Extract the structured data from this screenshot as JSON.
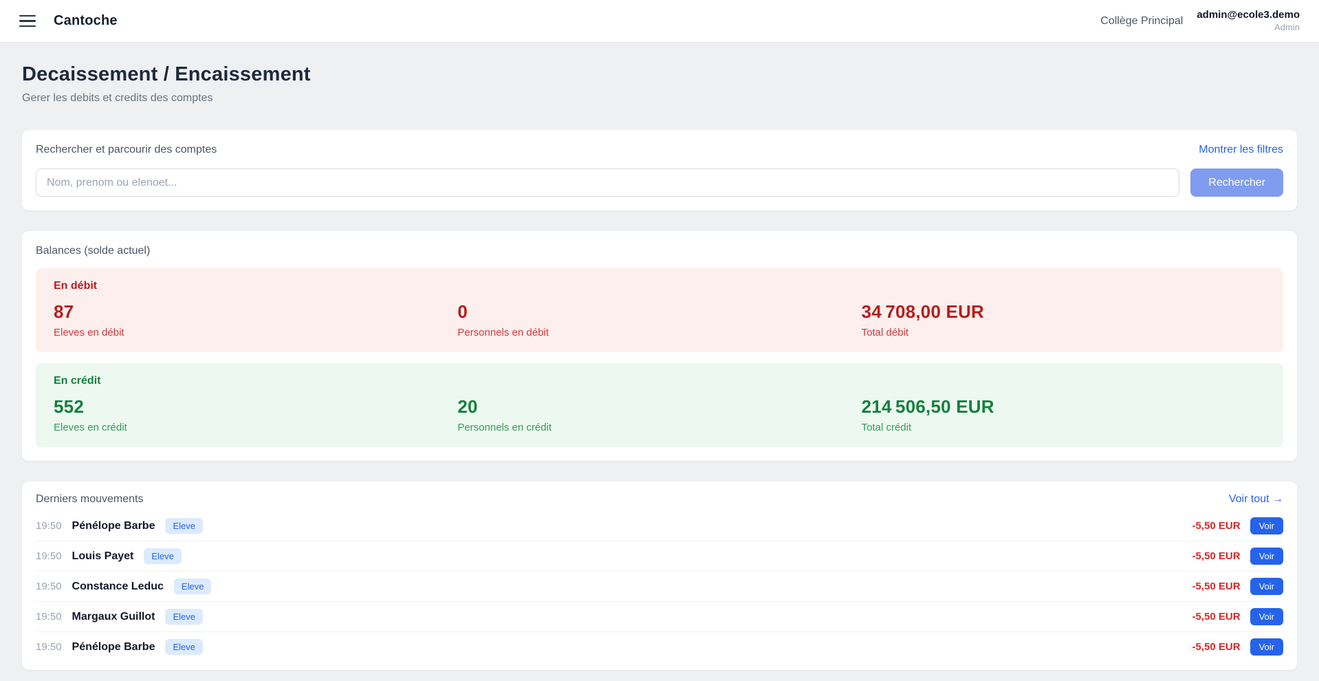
{
  "header": {
    "app_title": "Cantoche",
    "school": "Collège Principal",
    "user_email": "admin@ecole3.demo",
    "user_role": "Admin"
  },
  "page": {
    "title": "Decaissement / Encaissement",
    "subtitle": "Gerer les debits et credits des comptes"
  },
  "search": {
    "label": "Rechercher et parcourir des comptes",
    "filters_link": "Montrer les filtres",
    "placeholder": "Nom, prenom ou elenoet...",
    "button": "Rechercher"
  },
  "balances": {
    "title": "Balances (solde actuel)",
    "debit": {
      "heading": "En débit",
      "stats": [
        {
          "value": "87",
          "label": "Eleves en débit"
        },
        {
          "value": "0",
          "label": "Personnels en débit"
        },
        {
          "value": "34 708,00 EUR",
          "label": "Total débit"
        }
      ]
    },
    "credit": {
      "heading": "En crédit",
      "stats": [
        {
          "value": "552",
          "label": "Eleves en crédit"
        },
        {
          "value": "20",
          "label": "Personnels en crédit"
        },
        {
          "value": "214 506,50 EUR",
          "label": "Total crédit"
        }
      ]
    }
  },
  "movements": {
    "title": "Derniers mouvements",
    "see_all": "Voir tout →",
    "view_button": "Voir",
    "rows": [
      {
        "time": "19:50",
        "name": "Pénélope Barbe",
        "badge": "Eleve",
        "amount": "-5,50 EUR"
      },
      {
        "time": "19:50",
        "name": "Louis Payet",
        "badge": "Eleve",
        "amount": "-5,50 EUR"
      },
      {
        "time": "19:50",
        "name": "Constance Leduc",
        "badge": "Eleve",
        "amount": "-5,50 EUR"
      },
      {
        "time": "19:50",
        "name": "Margaux Guillot",
        "badge": "Eleve",
        "amount": "-5,50 EUR"
      },
      {
        "time": "19:50",
        "name": "Pénélope Barbe",
        "badge": "Eleve",
        "amount": "-5,50 EUR"
      }
    ]
  },
  "colors": {
    "accent_blue": "#2563eb",
    "search_button_blue": "#7f9cee",
    "badge_bg": "#dbeafe",
    "debit_red": "#b91c1c",
    "debit_panel_bg": "#fcefee",
    "credit_green": "#15803d",
    "credit_panel_bg": "#edf8f0",
    "amount_red": "#dc2626",
    "page_bg": "#eef0f2"
  }
}
